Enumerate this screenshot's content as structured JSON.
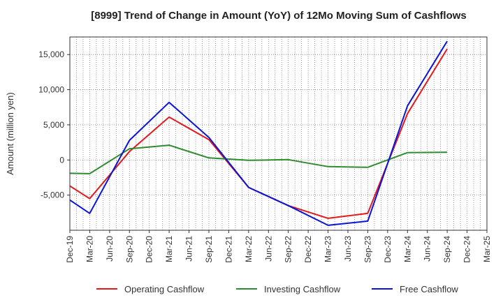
{
  "chart_data": {
    "type": "line",
    "title": "[8999]  Trend of Change in Amount (YoY) of 12Mo Moving Sum of Cashflows",
    "xlabel": "",
    "ylabel": "Amount (million yen)",
    "categories": [
      "Dec-19",
      "Mar-20",
      "Jun-20",
      "Sep-20",
      "Dec-20",
      "Mar-21",
      "Jun-21",
      "Sep-21",
      "Dec-21",
      "Mar-22",
      "Jun-22",
      "Sep-22",
      "Dec-22",
      "Mar-23",
      "Jun-23",
      "Sep-23",
      "Dec-23",
      "Mar-24",
      "Jun-24",
      "Sep-24",
      "Dec-24",
      "Mar-25"
    ],
    "ylim": [
      -10000,
      17500
    ],
    "yticks": [
      -5000,
      0,
      5000,
      10000,
      15000
    ],
    "ytick_labels": [
      "-5,000",
      "0",
      "5,000",
      "10,000",
      "15,000"
    ],
    "grid": true,
    "legend_position": "bottom",
    "series": [
      {
        "name": "Operating Cashflow",
        "color": "#e31a1c",
        "values": [
          -3700,
          -5500,
          null,
          1200,
          null,
          6100,
          null,
          2900,
          null,
          -3900,
          null,
          -6500,
          null,
          -8300,
          null,
          -7600,
          null,
          6600,
          null,
          15800,
          null,
          null
        ]
      },
      {
        "name": "Investing Cashflow",
        "color": "#2e8b2e",
        "values": [
          -1900,
          -1950,
          null,
          1600,
          null,
          2100,
          null,
          300,
          null,
          -50,
          null,
          50,
          null,
          -950,
          null,
          -1050,
          null,
          1050,
          null,
          1100,
          null,
          null
        ]
      },
      {
        "name": "Free Cashflow",
        "color": "#0a14d8",
        "values": [
          -5700,
          -7600,
          null,
          2800,
          null,
          8200,
          null,
          3200,
          null,
          -3900,
          null,
          -6500,
          null,
          -9300,
          null,
          -8700,
          null,
          7700,
          null,
          16900,
          null,
          null
        ]
      }
    ]
  }
}
